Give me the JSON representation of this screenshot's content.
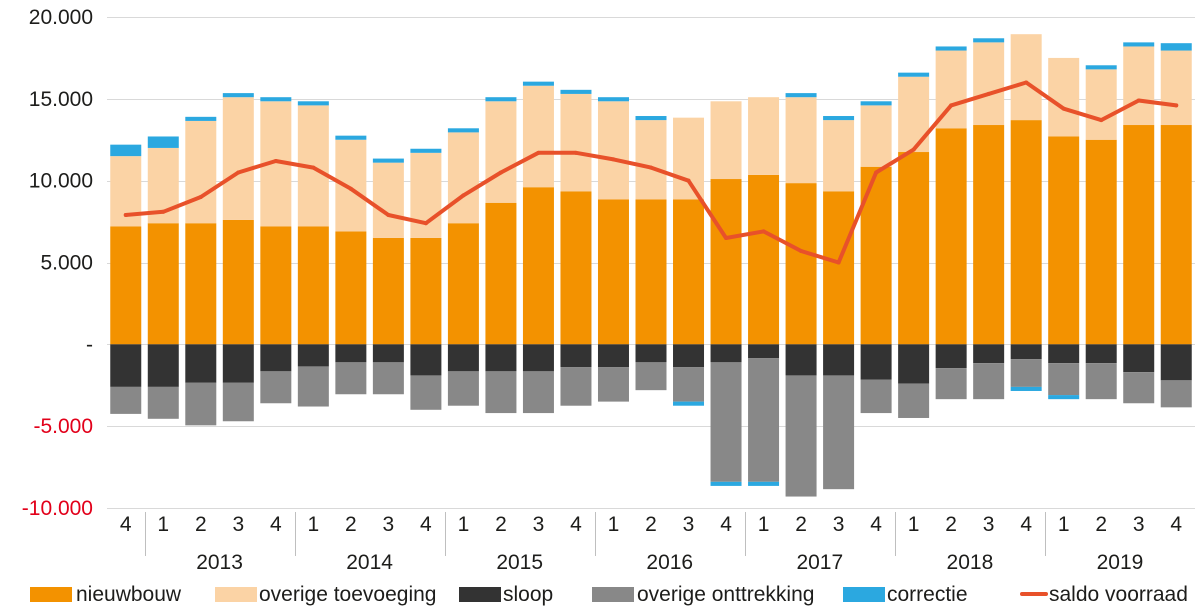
{
  "chart_data": {
    "type": "bar",
    "stacked": true,
    "categories": [
      "4",
      "1",
      "2",
      "3",
      "4",
      "1",
      "2",
      "3",
      "4",
      "1",
      "2",
      "3",
      "4",
      "1",
      "2",
      "3",
      "4",
      "1",
      "2",
      "3",
      "4",
      "1",
      "2",
      "3",
      "4",
      "1",
      "2",
      "3",
      "4"
    ],
    "category_groups": [
      {
        "label": "",
        "count": 1
      },
      {
        "label": "2013",
        "count": 4
      },
      {
        "label": "2014",
        "count": 4
      },
      {
        "label": "2015",
        "count": 4
      },
      {
        "label": "2016",
        "count": 4
      },
      {
        "label": "2017",
        "count": 4
      },
      {
        "label": "2018",
        "count": 4
      },
      {
        "label": "2019",
        "count": 4
      }
    ],
    "y_axis": {
      "ylim": [
        -10000,
        20000
      ],
      "ticks": [
        20000,
        15000,
        10000,
        5000,
        0,
        -5000,
        -10000
      ],
      "tick_labels": [
        "20.000",
        "15.000",
        "10.000",
        "5.000",
        "-",
        "-5.000",
        "-10.000"
      ],
      "negative_label_color": "#E2001A"
    },
    "grid": "horizontal",
    "legend": "bottom",
    "series": [
      {
        "name": "nieuwbouw",
        "kind": "bar",
        "color": "#F39200",
        "values": [
          7200,
          7400,
          7400,
          7600,
          7200,
          7200,
          6900,
          6500,
          6500,
          7400,
          8650,
          9600,
          9350,
          8850,
          8850,
          8850,
          10100,
          10350,
          9850,
          9350,
          10850,
          11750,
          13200,
          13400,
          13700,
          12700,
          12500,
          13400,
          13400
        ]
      },
      {
        "name": "overige toevoeging",
        "kind": "bar",
        "color": "#FBD3A5",
        "values": [
          4300,
          4600,
          6250,
          7500,
          7650,
          7400,
          5600,
          4600,
          5200,
          5550,
          6200,
          6200,
          5950,
          6000,
          4850,
          5000,
          4750,
          4750,
          5250,
          4350,
          3750,
          4600,
          4750,
          5050,
          5250,
          4800,
          4300,
          4800,
          4550
        ]
      },
      {
        "name": "sloop",
        "kind": "bar",
        "color": "#333333",
        "values": [
          -2600,
          -2600,
          -2350,
          -2350,
          -1650,
          -1350,
          -1100,
          -1100,
          -1900,
          -1650,
          -1650,
          -1650,
          -1400,
          -1400,
          -1100,
          -1400,
          -1100,
          -850,
          -1900,
          -1900,
          -2150,
          -2400,
          -1450,
          -1150,
          -900,
          -1150,
          -1150,
          -1700,
          -2200
        ]
      },
      {
        "name": "overige onttrekking",
        "kind": "bar",
        "color": "#888888",
        "values": [
          -1650,
          -1950,
          -2600,
          -2350,
          -1950,
          -2450,
          -1950,
          -1950,
          -2100,
          -2100,
          -2550,
          -2550,
          -2350,
          -2100,
          -1700,
          -2100,
          -7300,
          -7550,
          -7400,
          -6950,
          -2050,
          -2100,
          -1900,
          -2200,
          -1700,
          -1950,
          -2200,
          -1900,
          -1650
        ]
      },
      {
        "name": "correctie",
        "kind": "bar",
        "color": "#2BA8E0",
        "values": [
          700,
          700,
          250,
          250,
          250,
          250,
          250,
          250,
          250,
          250,
          250,
          250,
          250,
          250,
          250,
          -250,
          -250,
          -250,
          250,
          250,
          250,
          250,
          250,
          250,
          -250,
          -250,
          250,
          250,
          450
        ]
      },
      {
        "name": "saldo voorraad",
        "kind": "line",
        "color": "#E8512A",
        "values": [
          7900,
          8100,
          9000,
          10500,
          11200,
          10800,
          9500,
          7900,
          7400,
          9100,
          10500,
          11700,
          11700,
          11300,
          10800,
          10000,
          6500,
          6900,
          5700,
          5000,
          10500,
          11900,
          14600,
          15300,
          16000,
          14400,
          13700,
          14900,
          14600
        ]
      }
    ]
  }
}
